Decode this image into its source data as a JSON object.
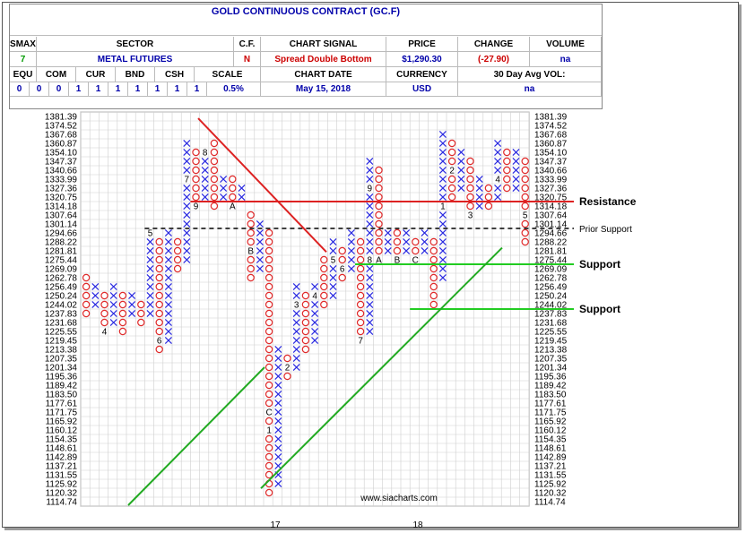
{
  "header": {
    "title": "GOLD CONTINUOUS CONTRACT (GC.F)",
    "labels": {
      "smax": "SMAX",
      "sector": "SECTOR",
      "cf": "C.F.",
      "chart_signal": "CHART SIGNAL",
      "price": "PRICE",
      "change": "CHANGE",
      "volume": "VOLUME",
      "equ": "EQU",
      "com": "COM",
      "cur": "CUR",
      "bnd": "BND",
      "csh": "CSH",
      "scale": "SCALE",
      "chart_date": "CHART DATE",
      "currency": "CURRENCY",
      "avg_vol": "30 Day Avg VOL:"
    },
    "values": {
      "smax": "7",
      "sector": "METAL FUTURES",
      "cf": "N",
      "chart_signal": "Spread Double Bottom",
      "price": "$1,290.30",
      "change": "(-27.90)",
      "volume": "na",
      "equ": "0",
      "com": "0",
      "cur": "0",
      "bnd": "1",
      "csh": "1",
      "scale_a": "1",
      "scale_b": "1",
      "scale_c": "1",
      "scale_d": "1",
      "scale_e": "1",
      "scale": "0.5%",
      "chart_date": "May 15, 2018",
      "currency": "USD",
      "avg_vol": "na"
    }
  },
  "chart_data": {
    "type": "point-and-figure",
    "title": "GOLD CONTINUOUS CONTRACT (GC.F)",
    "price_levels": [
      "1381.39",
      "1374.52",
      "1367.68",
      "1360.87",
      "1354.10",
      "1347.37",
      "1340.66",
      "1333.99",
      "1327.36",
      "1320.75",
      "1314.18",
      "1307.64",
      "1301.14",
      "1294.66",
      "1288.22",
      "1281.81",
      "1275.44",
      "1269.09",
      "1262.78",
      "1256.49",
      "1250.24",
      "1244.02",
      "1237.83",
      "1231.68",
      "1225.55",
      "1219.45",
      "1213.38",
      "1207.35",
      "1201.34",
      "1195.36",
      "1189.42",
      "1183.50",
      "1177.61",
      "1171.75",
      "1165.92",
      "1160.12",
      "1154.35",
      "1148.61",
      "1142.89",
      "1137.21",
      "1131.55",
      "1125.92",
      "1120.32",
      "1114.74"
    ],
    "year_labels": [
      "17",
      "18"
    ],
    "columns": [
      {
        "type": "O",
        "top": 1262.78,
        "bottom": 1237.83
      },
      {
        "type": "X",
        "top": 1256.49,
        "bottom": 1244.02
      },
      {
        "type": "O",
        "top": 1250.24,
        "bottom": 1225.55,
        "marks": {
          "1225.55": "4"
        }
      },
      {
        "type": "X",
        "top": 1256.49,
        "bottom": 1231.68
      },
      {
        "type": "O",
        "top": 1250.24,
        "bottom": 1225.55
      },
      {
        "type": "X",
        "top": 1250.24,
        "bottom": 1237.83
      },
      {
        "type": "O",
        "top": 1244.02,
        "bottom": 1231.68
      },
      {
        "type": "X",
        "top": 1294.66,
        "bottom": 1237.83,
        "marks": {
          "1294.66": "5"
        }
      },
      {
        "type": "O",
        "top": 1288.22,
        "bottom": 1213.38,
        "marks": {
          "1219.45": "6"
        }
      },
      {
        "type": "X",
        "top": 1294.66,
        "bottom": 1219.45
      },
      {
        "type": "O",
        "top": 1288.22,
        "bottom": 1269.09
      },
      {
        "type": "X",
        "top": 1360.87,
        "bottom": 1275.44,
        "marks": {
          "1333.99": "7"
        }
      },
      {
        "type": "O",
        "top": 1354.1,
        "bottom": 1314.18,
        "marks": {
          "1314.18": "9"
        }
      },
      {
        "type": "X",
        "top": 1354.1,
        "bottom": 1320.75,
        "marks": {
          "1354.10": "8"
        }
      },
      {
        "type": "O",
        "top": 1360.87,
        "bottom": 1314.18
      },
      {
        "type": "X",
        "top": 1333.99,
        "bottom": 1320.75
      },
      {
        "type": "O",
        "top": 1333.99,
        "bottom": 1314.18,
        "marks": {
          "1314.18": "A"
        }
      },
      {
        "type": "X",
        "top": 1327.36,
        "bottom": 1320.75
      },
      {
        "type": "O",
        "top": 1307.64,
        "bottom": 1262.78,
        "marks": {
          "1281.81": "B"
        }
      },
      {
        "type": "X",
        "top": 1301.14,
        "bottom": 1269.09
      },
      {
        "type": "O",
        "top": 1294.66,
        "bottom": 1120.32,
        "marks": {
          "1171.75": "C",
          "1160.12": "1"
        }
      },
      {
        "type": "X",
        "top": 1213.38,
        "bottom": 1125.92
      },
      {
        "type": "O",
        "top": 1207.35,
        "bottom": 1195.36,
        "marks": {
          "1201.34": "2"
        }
      },
      {
        "type": "X",
        "top": 1256.49,
        "bottom": 1201.34,
        "marks": {
          "1244.02": "3"
        }
      },
      {
        "type": "O",
        "top": 1250.24,
        "bottom": 1213.38
      },
      {
        "type": "X",
        "top": 1256.49,
        "bottom": 1219.45,
        "marks": {
          "1250.24": "4"
        }
      },
      {
        "type": "O",
        "top": 1275.44,
        "bottom": 1244.02
      },
      {
        "type": "X",
        "top": 1288.22,
        "bottom": 1250.24,
        "marks": {
          "1275.44": "5"
        }
      },
      {
        "type": "O",
        "top": 1281.81,
        "bottom": 1262.78,
        "marks": {
          "1269.09": "6"
        }
      },
      {
        "type": "X",
        "top": 1294.66,
        "bottom": 1269.09
      },
      {
        "type": "O",
        "top": 1288.22,
        "bottom": 1219.45,
        "marks": {
          "1219.45": "7"
        }
      },
      {
        "type": "X",
        "top": 1347.37,
        "bottom": 1225.55,
        "marks": {
          "1327.36": "9",
          "1275.44": "8"
        }
      },
      {
        "type": "O",
        "top": 1340.66,
        "bottom": 1275.44,
        "marks": {
          "1275.44": "A"
        }
      },
      {
        "type": "X",
        "top": 1294.66,
        "bottom": 1281.81
      },
      {
        "type": "O",
        "top": 1294.66,
        "bottom": 1275.44,
        "marks": {
          "1275.44": "B"
        }
      },
      {
        "type": "X",
        "top": 1294.66,
        "bottom": 1281.81
      },
      {
        "type": "O",
        "top": 1288.22,
        "bottom": 1275.44,
        "marks": {
          "1275.44": "C"
        }
      },
      {
        "type": "X",
        "top": 1294.66,
        "bottom": 1281.81
      },
      {
        "type": "O",
        "top": 1288.22,
        "bottom": 1244.02
      },
      {
        "type": "X",
        "top": 1367.68,
        "bottom": 1262.78,
        "marks": {
          "1314.18": "1"
        }
      },
      {
        "type": "O",
        "top": 1360.87,
        "bottom": 1320.75,
        "marks": {
          "1340.66": "2"
        }
      },
      {
        "type": "X",
        "top": 1354.1,
        "bottom": 1327.36
      },
      {
        "type": "O",
        "top": 1347.37,
        "bottom": 1307.64,
        "marks": {
          "1307.64": "3"
        }
      },
      {
        "type": "X",
        "top": 1333.99,
        "bottom": 1314.18
      },
      {
        "type": "O",
        "top": 1327.36,
        "bottom": 1314.18
      },
      {
        "type": "X",
        "top": 1360.87,
        "bottom": 1320.75,
        "marks": {
          "1333.99": "4"
        }
      },
      {
        "type": "O",
        "top": 1354.1,
        "bottom": 1327.36
      },
      {
        "type": "X",
        "top": 1354.1,
        "bottom": 1327.36
      },
      {
        "type": "O",
        "top": 1347.37,
        "bottom": 1288.22,
        "marks": {
          "1307.64": "5"
        }
      }
    ],
    "annotations": {
      "resistance": {
        "label": "Resistance",
        "price": 1317.47
      },
      "prior_support": {
        "label": "Prior Support",
        "price": 1297.9
      },
      "support_1": {
        "label": "Support",
        "price": 1272.27
      },
      "support_2": {
        "label": "Support",
        "price": 1240.93
      }
    },
    "colors": {
      "x": "#2a2ae0",
      "o": "#e02a2a",
      "resistance": "#dd2222",
      "support": "#22cc22",
      "trend_up": "#22aa22",
      "trend_down": "#dd2222",
      "grid": "#cfcfcf"
    },
    "watermark": "www.siacharts.com"
  }
}
